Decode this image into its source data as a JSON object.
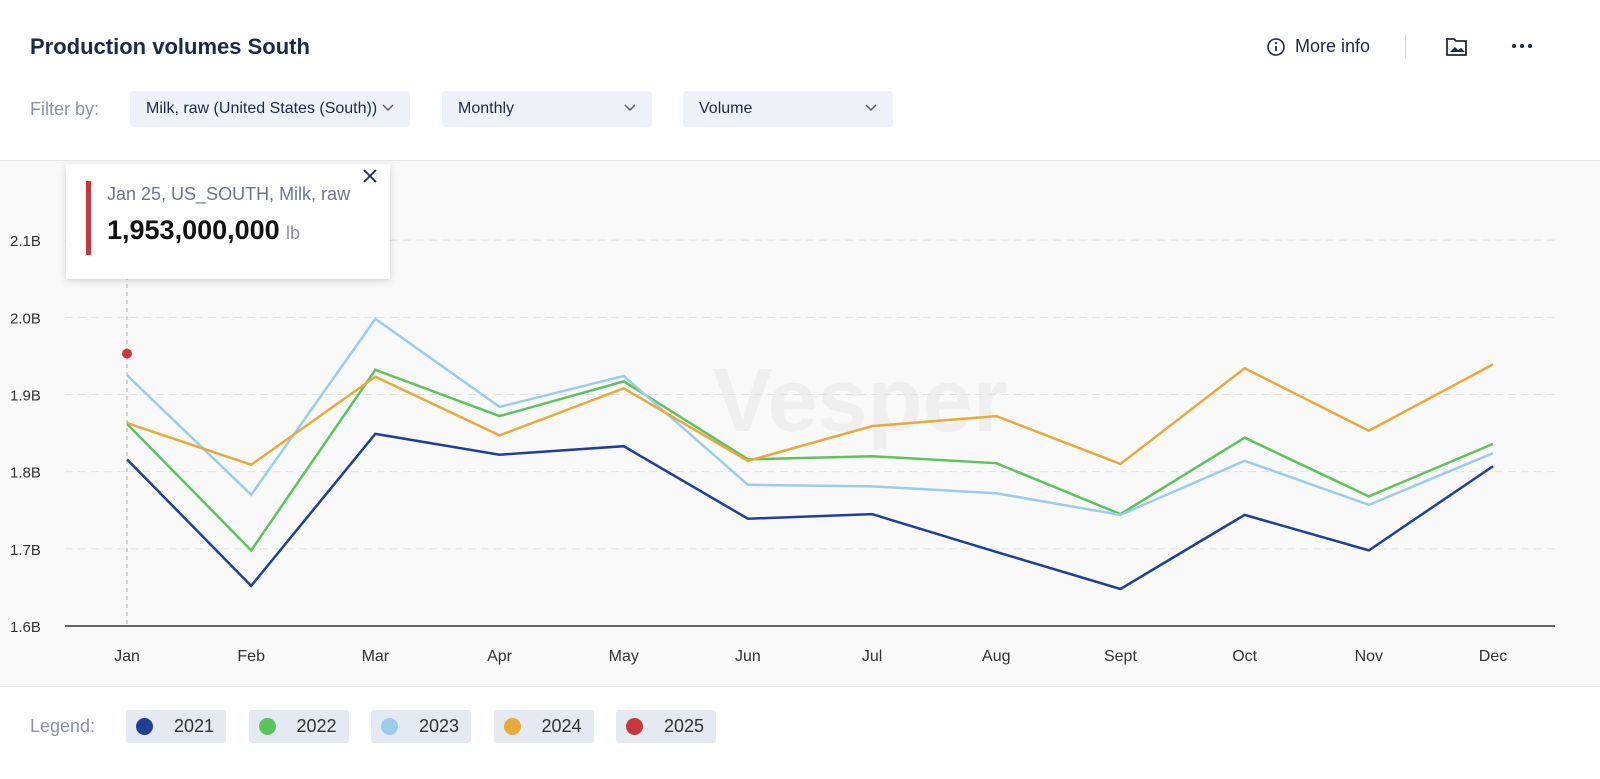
{
  "header": {
    "title": "Production volumes South",
    "more_info": "More info"
  },
  "filters": {
    "label": "Filter by:",
    "options": [
      "Milk, raw (United States (South))",
      "Monthly",
      "Volume"
    ]
  },
  "tooltip": {
    "title": "Jan 25, US_SOUTH, Milk, raw",
    "value": "1,953,000,000",
    "unit": "lb"
  },
  "watermark": "Vesper",
  "legend_label": "Legend:",
  "chart_data": {
    "type": "line",
    "categories": [
      "Jan",
      "Feb",
      "Mar",
      "Apr",
      "May",
      "Jun",
      "Jul",
      "Aug",
      "Sept",
      "Oct",
      "Nov",
      "Dec"
    ],
    "ylim": [
      1600000000,
      2200000000
    ],
    "yticks": [
      {
        "value": 1600000000,
        "label": "1.6B"
      },
      {
        "value": 1700000000,
        "label": "1.7B"
      },
      {
        "value": 1800000000,
        "label": "1.8B"
      },
      {
        "value": 1900000000,
        "label": "1.9B"
      },
      {
        "value": 2000000000,
        "label": "2.0B"
      },
      {
        "value": 2100000000,
        "label": "2.1B"
      }
    ],
    "grid": true,
    "series": [
      {
        "name": "2021",
        "color": "#1f3f99",
        "values": [
          1816000000,
          1652000000,
          1849000000,
          1822000000,
          1833000000,
          1739000000,
          1745000000,
          1696000000,
          1648000000,
          1744000000,
          1698000000,
          1807000000
        ]
      },
      {
        "name": "2022",
        "color": "#5cc35e",
        "values": [
          1862000000,
          1698000000,
          1932000000,
          1872000000,
          1917000000,
          1816000000,
          1820000000,
          1811000000,
          1745000000,
          1844000000,
          1768000000,
          1836000000
        ]
      },
      {
        "name": "2023",
        "color": "#98cdee",
        "values": [
          1925000000,
          1770000000,
          1998000000,
          1884000000,
          1924000000,
          1783000000,
          1781000000,
          1772000000,
          1744000000,
          1814000000,
          1757000000,
          1824000000
        ]
      },
      {
        "name": "2024",
        "color": "#e9a93b",
        "values": [
          1863000000,
          1809000000,
          1923000000,
          1847000000,
          1908000000,
          1814000000,
          1859000000,
          1872000000,
          1810000000,
          1934000000,
          1853000000,
          1939000000
        ]
      },
      {
        "name": "2025",
        "color": "#c8373e",
        "values": [
          1953000000,
          null,
          null,
          null,
          null,
          null,
          null,
          null,
          null,
          null,
          null,
          null
        ]
      }
    ]
  }
}
